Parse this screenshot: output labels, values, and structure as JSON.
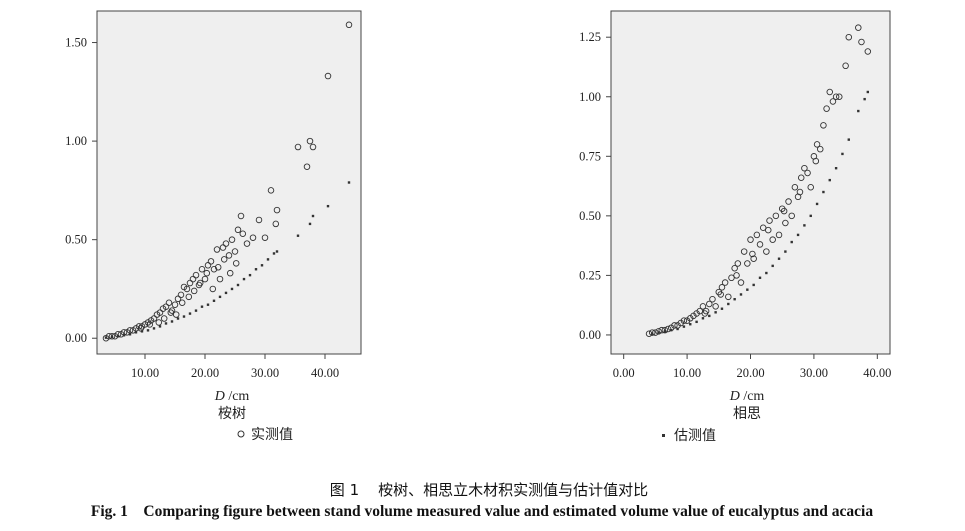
{
  "chart_data": [
    {
      "type": "scatter",
      "panel_label": "桉树",
      "xlabel": "D /cm",
      "ylabel": "",
      "xlim": [
        2,
        46
      ],
      "ylim": [
        -0.08,
        1.66
      ],
      "x_ticks": [
        "10.00",
        "20.00",
        "30.00",
        "40.00"
      ],
      "y_ticks": [
        "0.00",
        "0.50",
        "1.00",
        "1.50"
      ],
      "x_tick_values": [
        10,
        20,
        30,
        40
      ],
      "y_tick_values": [
        0,
        0.5,
        1.0,
        1.5
      ],
      "series": [
        {
          "name": "实测值",
          "marker": "open-circle",
          "x": [
            3.5,
            4.0,
            4.5,
            5.0,
            5.5,
            6.0,
            6.5,
            7.0,
            7.5,
            8.0,
            8.5,
            9.0,
            9.5,
            10.0,
            10.5,
            11.0,
            11.5,
            12.0,
            12.5,
            13.0,
            13.5,
            14.0,
            14.5,
            15.0,
            15.5,
            16.0,
            16.5,
            17.0,
            17.5,
            18.0,
            18.5,
            19.0,
            19.5,
            20.0,
            20.5,
            21.0,
            21.5,
            22.0,
            22.5,
            23.0,
            23.5,
            24.0,
            24.5,
            25.0,
            25.5,
            26.0,
            27.0,
            28.0,
            29.0,
            30.0,
            31.0,
            32.0,
            35.5,
            37.0,
            37.5,
            38.0,
            40.5,
            44.0,
            13.2,
            14.3,
            15.2,
            16.2,
            17.3,
            18.2,
            19.2,
            20.3,
            21.3,
            22.2,
            23.2,
            24.2,
            25.2,
            26.3,
            9.3,
            10.8,
            12.3,
            31.8
          ],
          "y": [
            0.0,
            0.01,
            0.01,
            0.01,
            0.02,
            0.02,
            0.03,
            0.03,
            0.04,
            0.04,
            0.05,
            0.06,
            0.06,
            0.07,
            0.08,
            0.09,
            0.1,
            0.12,
            0.13,
            0.15,
            0.16,
            0.18,
            0.14,
            0.17,
            0.2,
            0.22,
            0.26,
            0.25,
            0.28,
            0.3,
            0.32,
            0.27,
            0.35,
            0.3,
            0.37,
            0.39,
            0.35,
            0.45,
            0.3,
            0.46,
            0.48,
            0.42,
            0.5,
            0.44,
            0.55,
            0.62,
            0.48,
            0.51,
            0.6,
            0.51,
            0.75,
            0.65,
            0.97,
            0.87,
            1.0,
            0.97,
            1.33,
            1.59,
            0.1,
            0.13,
            0.12,
            0.18,
            0.21,
            0.24,
            0.28,
            0.33,
            0.25,
            0.36,
            0.4,
            0.33,
            0.38,
            0.53,
            0.05,
            0.07,
            0.08,
            0.58
          ]
        },
        {
          "name": "估测值",
          "marker": "small-square",
          "x": [
            3.5,
            4.5,
            5.5,
            6.5,
            7.5,
            8.5,
            9.5,
            10.5,
            11.5,
            12.5,
            13.5,
            14.5,
            15.5,
            16.5,
            17.5,
            18.5,
            19.5,
            20.5,
            21.5,
            22.5,
            23.5,
            24.5,
            25.5,
            26.5,
            27.5,
            28.5,
            29.5,
            30.5,
            31.5,
            32.0,
            35.5,
            37.5,
            38.0,
            40.5,
            44.0
          ],
          "y": [
            0.003,
            0.007,
            0.01,
            0.015,
            0.02,
            0.03,
            0.035,
            0.04,
            0.05,
            0.06,
            0.075,
            0.085,
            0.1,
            0.11,
            0.125,
            0.14,
            0.16,
            0.17,
            0.19,
            0.21,
            0.23,
            0.25,
            0.27,
            0.3,
            0.32,
            0.35,
            0.37,
            0.4,
            0.43,
            0.44,
            0.52,
            0.58,
            0.62,
            0.67,
            0.79
          ]
        }
      ]
    },
    {
      "type": "scatter",
      "panel_label": "相思",
      "xlabel": "D /cm",
      "ylabel": "",
      "xlim": [
        -2,
        42
      ],
      "ylim": [
        -0.08,
        1.36
      ],
      "x_ticks": [
        "0.00",
        "10.00",
        "20.00",
        "30.00",
        "40.00"
      ],
      "y_ticks": [
        "0.00",
        "0.25",
        "0.50",
        "0.75",
        "1.00",
        "1.25"
      ],
      "x_tick_values": [
        0,
        10,
        20,
        30,
        40
      ],
      "y_tick_values": [
        0,
        0.25,
        0.5,
        0.75,
        1.0,
        1.25
      ],
      "series": [
        {
          "name": "实测值",
          "marker": "open-circle",
          "x": [
            4.0,
            4.5,
            5.0,
            5.5,
            6.0,
            6.5,
            7.0,
            7.5,
            8.0,
            8.5,
            9.0,
            9.5,
            10.0,
            10.5,
            11.0,
            11.5,
            12.0,
            12.5,
            13.0,
            13.5,
            14.0,
            14.5,
            15.0,
            15.5,
            16.0,
            16.5,
            17.0,
            17.5,
            18.0,
            18.5,
            19.0,
            19.5,
            20.0,
            20.5,
            21.0,
            21.5,
            22.0,
            22.5,
            23.0,
            23.5,
            24.0,
            24.5,
            25.0,
            25.5,
            26.0,
            26.5,
            27.0,
            27.5,
            28.0,
            28.5,
            29.0,
            29.5,
            30.0,
            30.5,
            31.0,
            31.5,
            32.0,
            32.5,
            33.0,
            33.5,
            34.0,
            35.0,
            35.5,
            37.0,
            37.5,
            38.5,
            12.8,
            15.3,
            17.8,
            20.3,
            22.8,
            25.3,
            27.8,
            30.3
          ],
          "y": [
            0.005,
            0.01,
            0.01,
            0.015,
            0.02,
            0.02,
            0.025,
            0.03,
            0.04,
            0.04,
            0.05,
            0.06,
            0.06,
            0.07,
            0.08,
            0.09,
            0.1,
            0.12,
            0.1,
            0.13,
            0.15,
            0.12,
            0.18,
            0.2,
            0.22,
            0.16,
            0.24,
            0.28,
            0.3,
            0.22,
            0.35,
            0.3,
            0.4,
            0.32,
            0.42,
            0.38,
            0.45,
            0.35,
            0.48,
            0.4,
            0.5,
            0.42,
            0.53,
            0.47,
            0.56,
            0.5,
            0.62,
            0.58,
            0.66,
            0.7,
            0.68,
            0.62,
            0.75,
            0.8,
            0.78,
            0.88,
            0.95,
            1.02,
            0.98,
            1.0,
            1.0,
            1.13,
            1.25,
            1.29,
            1.23,
            1.19,
            0.09,
            0.17,
            0.25,
            0.34,
            0.44,
            0.52,
            0.6,
            0.73
          ]
        },
        {
          "name": "估测值",
          "marker": "small-square",
          "x": [
            4.5,
            5.5,
            6.5,
            7.5,
            8.5,
            9.5,
            10.5,
            11.5,
            12.5,
            13.5,
            14.5,
            15.5,
            16.5,
            17.5,
            18.5,
            19.5,
            20.5,
            21.5,
            22.5,
            23.5,
            24.5,
            25.5,
            26.5,
            27.5,
            28.5,
            29.5,
            30.5,
            31.5,
            32.5,
            33.5,
            34.5,
            35.5,
            37.0,
            38.0,
            38.5
          ],
          "y": [
            0.005,
            0.01,
            0.015,
            0.02,
            0.025,
            0.035,
            0.045,
            0.055,
            0.07,
            0.08,
            0.095,
            0.11,
            0.13,
            0.15,
            0.17,
            0.19,
            0.21,
            0.24,
            0.26,
            0.29,
            0.32,
            0.35,
            0.39,
            0.42,
            0.46,
            0.5,
            0.55,
            0.6,
            0.65,
            0.7,
            0.76,
            0.82,
            0.94,
            0.99,
            1.02
          ]
        }
      ]
    }
  ],
  "legend": {
    "measured_label": "实测值",
    "estimated_label": "估测值"
  },
  "caption": {
    "cn": "图 1    桉树、相思立木材积实测值与估计值对比",
    "en": "Fig. 1    Comparing figure between stand volume measured value and estimated volume value of eucalyptus and acacia"
  }
}
